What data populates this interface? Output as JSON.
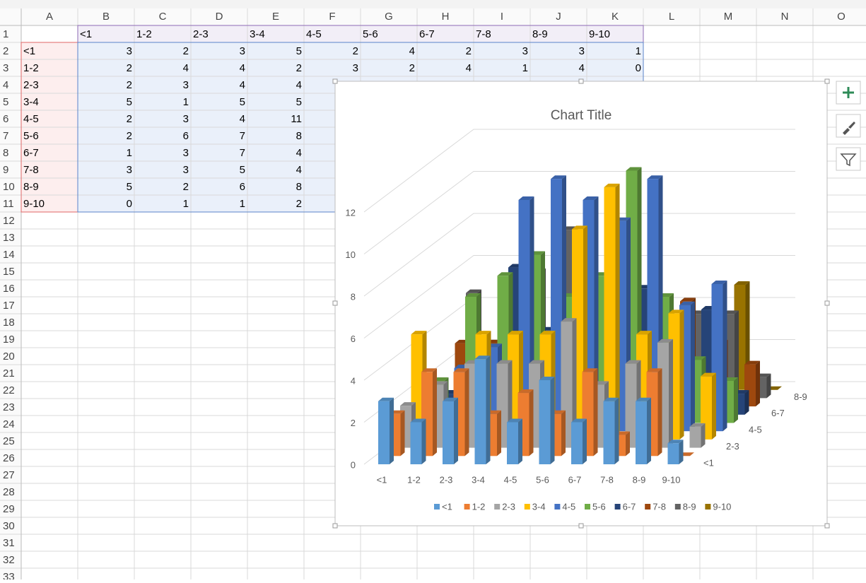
{
  "sheet": {
    "columns": [
      "A",
      "B",
      "C",
      "D",
      "E",
      "F",
      "G",
      "H",
      "I",
      "J",
      "K",
      "L",
      "M",
      "N",
      "O"
    ],
    "row_numbers": [
      1,
      2,
      3,
      4,
      5,
      6,
      7,
      8,
      9,
      10,
      11,
      12,
      13,
      14,
      15,
      16,
      17,
      18,
      19,
      20,
      21,
      22,
      23,
      24,
      25,
      26,
      27,
      28,
      29,
      30,
      31,
      32,
      33
    ],
    "header_row": [
      "<1",
      "1-2",
      "2-3",
      "3-4",
      "4-5",
      "5-6",
      "6-7",
      "7-8",
      "8-9",
      "9-10"
    ],
    "rows": [
      {
        "label": "<1",
        "values": [
          3,
          2,
          3,
          5,
          2,
          4,
          2,
          3,
          3,
          1
        ]
      },
      {
        "label": "1-2",
        "values": [
          2,
          4,
          4,
          2,
          3,
          2,
          4,
          1,
          4,
          0
        ]
      },
      {
        "label": "2-3",
        "values": [
          2,
          3,
          4,
          4
        ]
      },
      {
        "label": "3-4",
        "values": [
          5,
          1,
          5,
          5
        ]
      },
      {
        "label": "4-5",
        "values": [
          2,
          3,
          4,
          11
        ]
      },
      {
        "label": "5-6",
        "values": [
          2,
          6,
          7,
          8
        ]
      },
      {
        "label": "6-7",
        "values": [
          1,
          3,
          7,
          4
        ]
      },
      {
        "label": "7-8",
        "values": [
          3,
          3,
          5,
          4
        ]
      },
      {
        "label": "8-9",
        "values": [
          5,
          2,
          6,
          8
        ]
      },
      {
        "label": "9-10",
        "values": [
          0,
          1,
          1,
          2
        ]
      }
    ]
  },
  "chart_data": {
    "type": "bar3d",
    "title": "Chart Title",
    "categories": [
      "<1",
      "1-2",
      "2-3",
      "3-4",
      "4-5",
      "5-6",
      "6-7",
      "7-8",
      "8-9",
      "9-10"
    ],
    "ylim": [
      0,
      12
    ],
    "yticks": [
      0,
      2,
      4,
      6,
      8,
      10,
      12
    ],
    "grid": true,
    "legend": "bottom",
    "series": [
      {
        "name": "<1",
        "color": "#5b9bd5",
        "values": [
          3,
          2,
          3,
          5,
          2,
          4,
          2,
          3,
          3,
          1
        ]
      },
      {
        "name": "1-2",
        "color": "#ed7d31",
        "values": [
          2,
          4,
          4,
          2,
          3,
          2,
          4,
          1,
          4,
          0
        ]
      },
      {
        "name": "2-3",
        "color": "#a5a5a5",
        "values": [
          2,
          3,
          4,
          4,
          4,
          6,
          3,
          4,
          5,
          1
        ]
      },
      {
        "name": "3-4",
        "color": "#ffc000",
        "values": [
          5,
          1,
          5,
          5,
          5,
          10,
          12,
          5,
          6,
          3
        ]
      },
      {
        "name": "4-5",
        "color": "#4472c4",
        "values": [
          2,
          3,
          4,
          11,
          12,
          11,
          10,
          12,
          6,
          7
        ]
      },
      {
        "name": "5-6",
        "color": "#70ad47",
        "values": [
          2,
          6,
          7,
          8,
          6,
          7,
          12,
          6,
          3,
          2
        ]
      },
      {
        "name": "6-7",
        "color": "#264478",
        "values": [
          1,
          3,
          7,
          4,
          6,
          6,
          6,
          3,
          5,
          1
        ]
      },
      {
        "name": "7-8",
        "color": "#9e480e",
        "values": [
          3,
          3,
          5,
          4,
          5,
          5,
          5,
          5,
          3,
          2
        ]
      },
      {
        "name": "8-9",
        "color": "#636363",
        "values": [
          5,
          2,
          6,
          8,
          5,
          4,
          4,
          4,
          4,
          1
        ]
      },
      {
        "name": "9-10",
        "color": "#997300",
        "values": [
          0,
          1,
          1,
          2,
          4,
          2,
          3,
          2,
          5,
          0
        ]
      }
    ]
  }
}
